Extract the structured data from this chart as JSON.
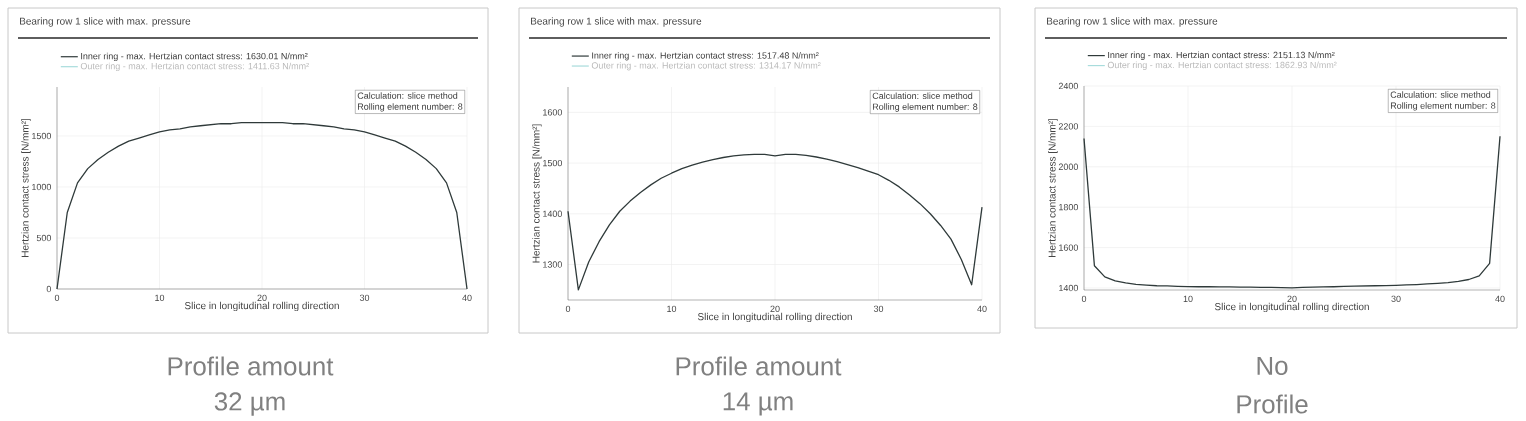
{
  "chart_data": [
    {
      "type": "line",
      "title": "Bearing row 1 slice with max. pressure",
      "xlabel": "Slice in longitudinal rolling direction",
      "ylabel": "Hertzian contact stress [N/mm²]",
      "x": [
        0,
        1,
        2,
        3,
        4,
        5,
        6,
        7,
        8,
        9,
        10,
        11,
        12,
        13,
        14,
        15,
        16,
        17,
        18,
        19,
        20,
        21,
        22,
        23,
        24,
        25,
        26,
        27,
        28,
        29,
        30,
        31,
        32,
        33,
        34,
        35,
        36,
        37,
        38,
        39,
        40
      ],
      "series": [
        {
          "name": "Inner ring - max. Hertzian contact stress: 1630.01 N/mm²",
          "color": "#2f3a3a",
          "values": [
            0,
            750,
            1040,
            1180,
            1270,
            1340,
            1400,
            1450,
            1480,
            1510,
            1540,
            1560,
            1570,
            1590,
            1600,
            1610,
            1620,
            1620,
            1630,
            1630,
            1630,
            1630,
            1630,
            1620,
            1620,
            1610,
            1600,
            1590,
            1570,
            1560,
            1540,
            1510,
            1480,
            1450,
            1400,
            1340,
            1270,
            1180,
            1040,
            750,
            0
          ]
        },
        {
          "name": "Outer ring - max. Hertzian contact stress: 1411.63 N/mm²",
          "color": "#a8dcdc",
          "values": [
            null,
            null,
            null,
            null,
            null,
            null,
            null,
            null,
            null,
            null,
            null,
            null,
            null,
            null,
            null,
            null,
            null,
            null,
            null,
            null,
            null,
            null,
            null,
            null,
            null,
            null,
            null,
            null,
            null,
            null,
            null,
            null,
            null,
            null,
            null,
            null,
            null,
            null,
            null,
            null,
            null
          ]
        }
      ],
      "xlim": [
        0,
        40
      ],
      "ylim": [
        0,
        1980
      ],
      "xticks": [
        0,
        10,
        20,
        30,
        40
      ],
      "yticks": [
        0,
        500,
        1000,
        1500
      ],
      "grid": true,
      "legend": "top left",
      "annotations": [
        "Calculation: slice method",
        "Rolling element number: 8",
        "Profile amount",
        "32 µm"
      ]
    },
    {
      "type": "line",
      "title": "Bearing row 1 slice with max. pressure",
      "xlabel": "Slice in longitudinal rolling direction",
      "ylabel": "Hertzian contact stress [N/mm²]",
      "x": [
        0,
        1,
        2,
        3,
        4,
        5,
        6,
        7,
        8,
        9,
        10,
        11,
        12,
        13,
        14,
        15,
        16,
        17,
        18,
        19,
        20,
        21,
        22,
        23,
        24,
        25,
        26,
        27,
        28,
        29,
        30,
        31,
        32,
        33,
        34,
        35,
        36,
        37,
        38,
        39,
        40
      ],
      "series": [
        {
          "name": "Inner ring - max. Hertzian contact stress: 1517.48 N/mm²",
          "color": "#2f3a3a",
          "values": [
            1405,
            1250,
            1305,
            1345,
            1378,
            1405,
            1425,
            1442,
            1457,
            1470,
            1480,
            1489,
            1496,
            1502,
            1507,
            1511,
            1514,
            1516,
            1517,
            1517,
            1514,
            1517,
            1517,
            1515,
            1512,
            1508,
            1503,
            1497,
            1491,
            1484,
            1477,
            1466,
            1453,
            1437,
            1420,
            1400,
            1377,
            1350,
            1310,
            1260,
            1413
          ]
        },
        {
          "name": "Outer ring - max. Hertzian contact stress: 1314.17 N/mm²",
          "color": "#a8dcdc",
          "values": [
            null,
            null,
            null,
            null,
            null,
            null,
            null,
            null,
            null,
            null,
            null,
            null,
            null,
            null,
            null,
            null,
            null,
            null,
            null,
            null,
            null,
            null,
            null,
            null,
            null,
            null,
            null,
            null,
            null,
            null,
            null,
            null,
            null,
            null,
            null,
            null,
            null,
            null,
            null,
            null,
            null
          ]
        }
      ],
      "xlim": [
        0,
        40
      ],
      "ylim": [
        1230,
        1650
      ],
      "xticks": [
        0,
        10,
        20,
        30,
        40
      ],
      "yticks": [
        1300,
        1400,
        1500,
        1600
      ],
      "grid": true,
      "legend": "top left",
      "annotations": [
        "Calculation: slice method",
        "Rolling element number: 8",
        "Profile amount",
        "14 µm"
      ]
    },
    {
      "type": "line",
      "title": "Bearing row 1 slice with max. pressure",
      "xlabel": "Slice in longitudinal rolling direction",
      "ylabel": "Hertzian contact stress [N/mm²]",
      "x": [
        0,
        1,
        2,
        3,
        4,
        5,
        6,
        7,
        8,
        9,
        10,
        11,
        12,
        13,
        14,
        15,
        16,
        17,
        18,
        19,
        20,
        21,
        22,
        23,
        24,
        25,
        26,
        27,
        28,
        29,
        30,
        31,
        32,
        33,
        34,
        35,
        36,
        37,
        38,
        39,
        40
      ],
      "series": [
        {
          "name": "Inner ring - max. Hertzian contact stress: 2151.13 N/mm²",
          "color": "#2f3a3a",
          "values": [
            2140,
            1510,
            1455,
            1435,
            1425,
            1418,
            1414,
            1411,
            1410,
            1408,
            1407,
            1406,
            1406,
            1405,
            1405,
            1404,
            1404,
            1403,
            1403,
            1402,
            1401,
            1403,
            1404,
            1405,
            1406,
            1408,
            1409,
            1410,
            1411,
            1412,
            1413,
            1415,
            1417,
            1420,
            1423,
            1427,
            1433,
            1442,
            1460,
            1522,
            2151
          ]
        },
        {
          "name": "Outer ring - max. Hertzian contact stress: 1862.93 N/mm²",
          "color": "#a8dcdc",
          "values": [
            null,
            null,
            null,
            null,
            null,
            null,
            null,
            null,
            null,
            null,
            null,
            null,
            null,
            null,
            null,
            null,
            null,
            null,
            null,
            null,
            null,
            null,
            null,
            null,
            null,
            null,
            null,
            null,
            null,
            null,
            null,
            null,
            null,
            null,
            null,
            null,
            null,
            null,
            null,
            null,
            null
          ]
        }
      ],
      "xlim": [
        0,
        40
      ],
      "ylim": [
        1390,
        2400
      ],
      "xticks": [
        0,
        10,
        20,
        30,
        40
      ],
      "yticks": [
        1400,
        1600,
        1800,
        2000,
        2200,
        2400
      ],
      "grid": true,
      "legend": "top left",
      "annotations": [
        "Calculation: slice method",
        "Rolling element number: 8",
        "No",
        "Profile"
      ]
    }
  ]
}
